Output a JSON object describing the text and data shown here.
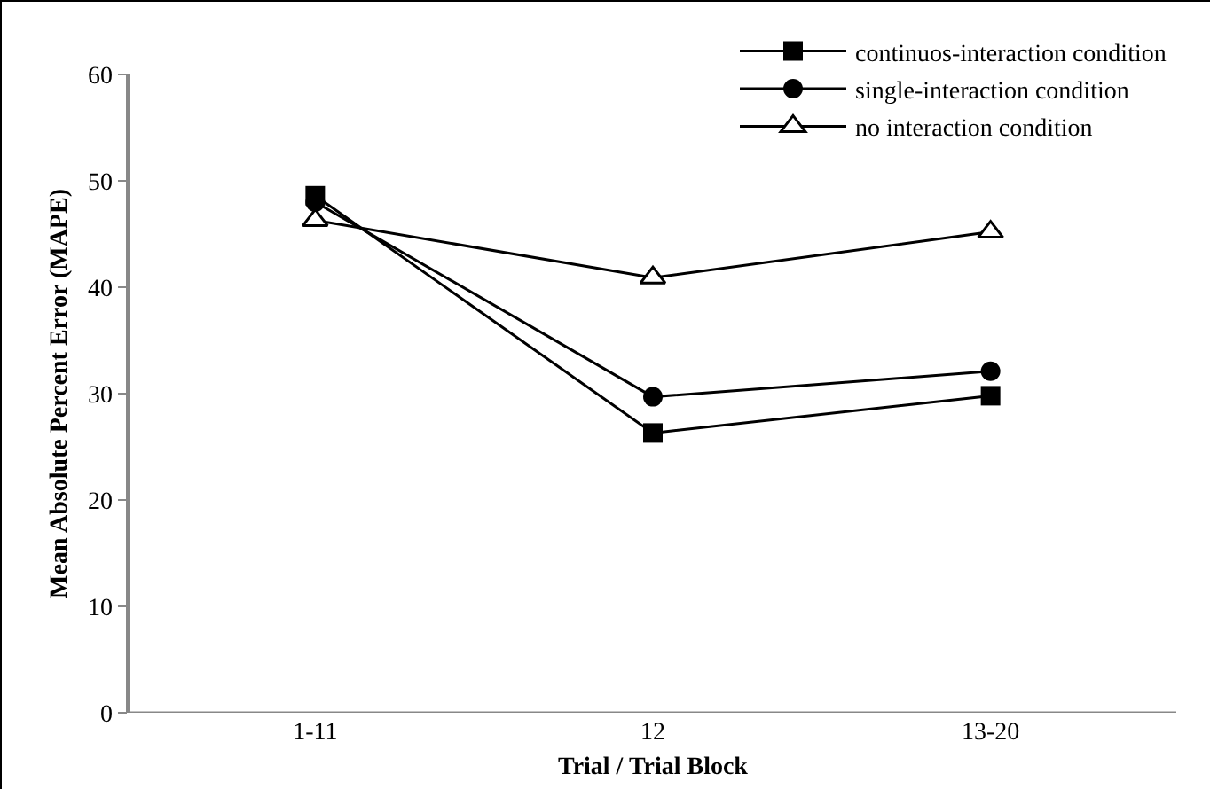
{
  "chart_data": {
    "type": "line",
    "xlabel": "Trial / Trial Block",
    "ylabel": "Mean Absolute Percent Error (MAPE)",
    "categories": [
      "1-11",
      "12",
      "13-20"
    ],
    "series": [
      {
        "name": "continuos-interaction condition",
        "color": "#000000",
        "marker": "square",
        "values": [
          48.6,
          26.3,
          29.8
        ]
      },
      {
        "name": "single-interaction condition",
        "color": "#000000",
        "marker": "circle",
        "values": [
          48.0,
          29.7,
          32.1
        ]
      },
      {
        "name": "no interaction condition",
        "color": "#000000",
        "marker": "triangle",
        "values": [
          46.3,
          40.9,
          45.2
        ]
      }
    ],
    "ylim": [
      0,
      60
    ],
    "yticks": [
      0,
      10,
      20,
      30,
      40,
      50,
      60
    ],
    "grid": false,
    "legend": "top right",
    "line_style": "solid"
  }
}
